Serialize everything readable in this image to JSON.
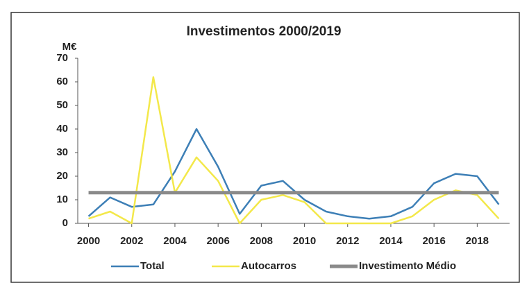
{
  "chart_data": {
    "type": "line",
    "title": "Investimentos 2000/2019",
    "y_label": "M€",
    "x": [
      2000,
      2001,
      2002,
      2003,
      2004,
      2005,
      2006,
      2007,
      2008,
      2009,
      2010,
      2011,
      2012,
      2013,
      2014,
      2015,
      2016,
      2017,
      2018,
      2019
    ],
    "xlim": [
      1999.5,
      2019.5
    ],
    "xticks": [
      2000,
      2002,
      2004,
      2006,
      2008,
      2010,
      2012,
      2014,
      2016,
      2018
    ],
    "ylim": [
      0,
      70
    ],
    "yticks": [
      0,
      10,
      20,
      30,
      40,
      50,
      60,
      70
    ],
    "legend": "bottom",
    "series": [
      {
        "name": "Total",
        "color": "#3d7fb6",
        "width": 2.5,
        "values": [
          3,
          11,
          7,
          8,
          22,
          40,
          24,
          4,
          16,
          18,
          10,
          5,
          3,
          2,
          3,
          7,
          17,
          21,
          20,
          8
        ]
      },
      {
        "name": "Autocarros",
        "color": "#f3e84a",
        "width": 2.5,
        "values": [
          2,
          5,
          0,
          62,
          13,
          28,
          18,
          0,
          10,
          12,
          9,
          0,
          0,
          0,
          0,
          3,
          10,
          14,
          12,
          2
        ]
      },
      {
        "name": "Investimento Médio",
        "color": "#8a8a8a",
        "width": 5,
        "values": [
          13,
          13,
          13,
          13,
          13,
          13,
          13,
          13,
          13,
          13,
          13,
          13,
          13,
          13,
          13,
          13,
          13,
          13,
          13,
          13
        ]
      }
    ]
  }
}
